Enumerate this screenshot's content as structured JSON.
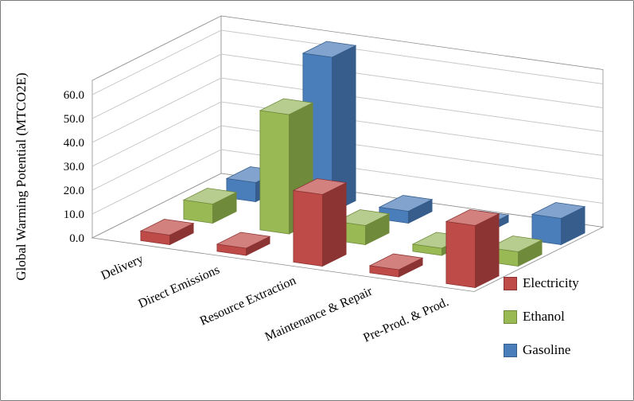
{
  "window": {
    "background": "#FFFFFF",
    "border_color": "#7A7A7A"
  },
  "chart_data": {
    "type": "bar",
    "style": "3d-column",
    "title": "",
    "xlabel": "",
    "ylabel": "Global Warming Potential (MTCO2E)",
    "ylim": [
      0,
      60
    ],
    "ytick_step": 10,
    "ytick_labels": [
      "0.0",
      "10.0",
      "20.0",
      "30.0",
      "40.0",
      "50.0",
      "60.0"
    ],
    "grid": true,
    "legend_position": "right",
    "categories": [
      "Delivery",
      "Direct Emissions",
      "Resource Extraction",
      "Maintenance & Repair",
      "Pre-Prod. & Prod."
    ],
    "series": [
      {
        "name": "Electricity",
        "color": "#BE4B48",
        "color_dark": "#8C3433",
        "color_light": "#D3817E",
        "values": [
          4.0,
          3.0,
          30.0,
          3.0,
          26.0
        ]
      },
      {
        "name": "Ethanol",
        "color": "#98B954",
        "color_dark": "#6F8A3B",
        "color_light": "#B7CD90",
        "values": [
          8.0,
          50.0,
          8.0,
          3.0,
          6.0
        ]
      },
      {
        "name": "Gasoline",
        "color": "#4A7EBB",
        "color_dark": "#365D8C",
        "color_light": "#81A3CE",
        "values": [
          8.0,
          65.0,
          5.0,
          3.0,
          11.0
        ]
      }
    ]
  }
}
